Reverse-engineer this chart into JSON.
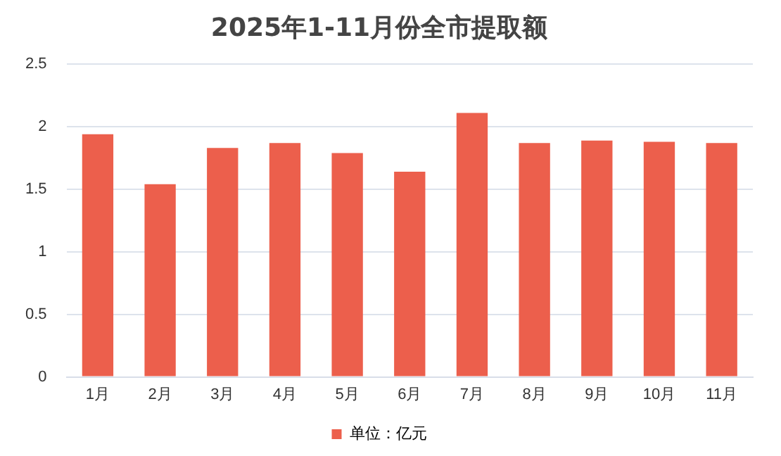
{
  "chart_data": {
    "type": "bar",
    "title": "2025年1-11月份全市提取额",
    "categories": [
      "1月",
      "2月",
      "3月",
      "4月",
      "5月",
      "6月",
      "7月",
      "8月",
      "9月",
      "10月",
      "11月"
    ],
    "series": [
      {
        "name": "单位：亿元",
        "color": "#ec5f4c",
        "values": [
          1.94,
          1.54,
          1.83,
          1.87,
          1.79,
          1.64,
          2.11,
          1.87,
          1.89,
          1.88,
          1.87
        ]
      }
    ],
    "ylim": [
      0,
      2.5
    ],
    "yticks": [
      0,
      0.5,
      1,
      1.5,
      2,
      2.5
    ],
    "grid": "y",
    "legend": "bottom"
  }
}
